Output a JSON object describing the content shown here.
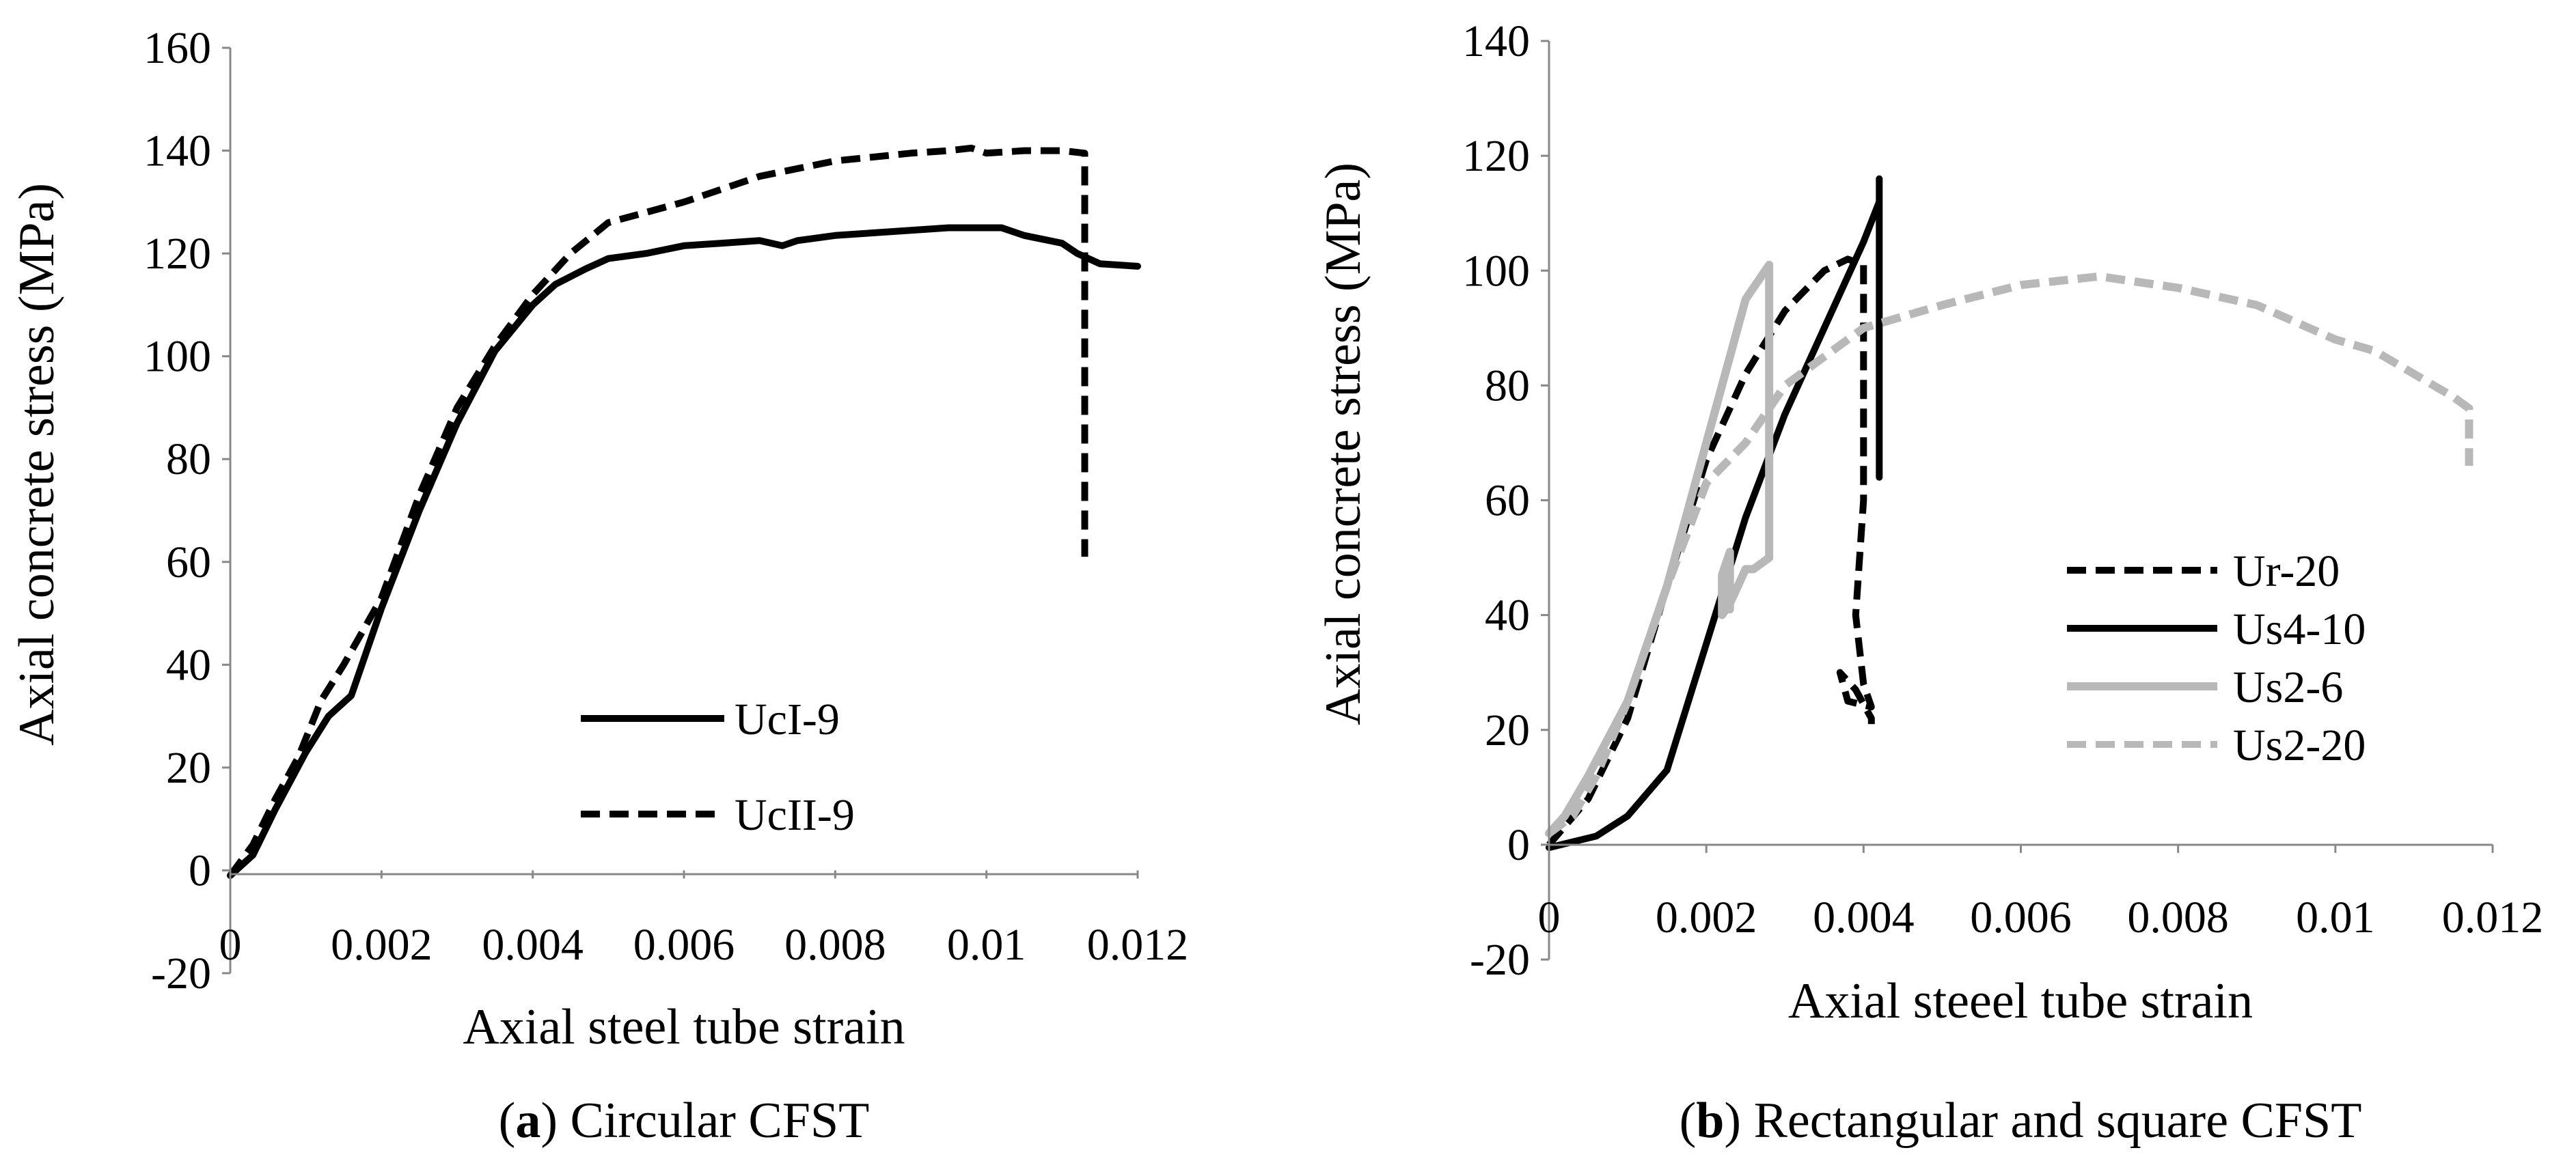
{
  "chart_data": [
    {
      "type": "line",
      "caption_bold": "a",
      "caption_text": " Circular CFST",
      "xlabel": "Axial steel tube strain",
      "ylabel": "Axial concrete stress (MPa)",
      "xlim": [
        0,
        0.012
      ],
      "ylim": [
        -20,
        160
      ],
      "x_ticks": [
        "0",
        "0.002",
        "0.004",
        "0.006",
        "0.008",
        "0.01",
        "0.012"
      ],
      "y_ticks": [
        "-20",
        "0",
        "20",
        "40",
        "60",
        "80",
        "100",
        "120",
        "140",
        "160"
      ],
      "legend": "center-right",
      "grid": false,
      "series": [
        {
          "name": "UcI-9",
          "color": "#000000",
          "dash": "solid",
          "x": [
            0,
            0.0003,
            0.0006,
            0.001,
            0.0013,
            0.0016,
            0.002,
            0.0025,
            0.003,
            0.0035,
            0.004,
            0.0043,
            0.0047,
            0.005,
            0.0055,
            0.006,
            0.0065,
            0.007,
            0.0073,
            0.0075,
            0.008,
            0.009,
            0.0095,
            0.01,
            0.0102,
            0.0105,
            0.011,
            0.0112,
            0.0115,
            0.012
          ],
          "y": [
            -1,
            3,
            12,
            23,
            30,
            34,
            51,
            70,
            87,
            101,
            110,
            114,
            117,
            119,
            120,
            121.5,
            122,
            122.5,
            121.5,
            122.5,
            123.5,
            124.5,
            125,
            125,
            125,
            123.5,
            122,
            120,
            118,
            117.5
          ]
        },
        {
          "name": "UcII-9",
          "color": "#000000",
          "dash": "dashed",
          "x": [
            0,
            0.0003,
            0.0006,
            0.0009,
            0.0012,
            0.0015,
            0.002,
            0.0025,
            0.003,
            0.0035,
            0.004,
            0.0045,
            0.005,
            0.0055,
            0.006,
            0.007,
            0.008,
            0.009,
            0.0095,
            0.0098,
            0.01,
            0.0105,
            0.011,
            0.0113,
            0.0113,
            0.0113
          ],
          "y": [
            -1,
            5,
            14,
            22,
            33,
            40,
            53,
            73,
            90,
            102,
            112,
            120,
            126,
            128,
            130,
            135,
            138,
            139.5,
            140,
            140.5,
            139.5,
            140,
            140,
            139.5,
            100,
            61
          ]
        }
      ]
    },
    {
      "type": "line",
      "caption_bold": "b",
      "caption_text": " Rectangular and square CFST",
      "xlabel": "Axial steeel tube strain",
      "ylabel": "Axial concrete stress (MPa)",
      "xlim": [
        0,
        0.012
      ],
      "ylim": [
        -20,
        140
      ],
      "x_ticks": [
        "0",
        "0.002",
        "0.004",
        "0.006",
        "0.008",
        "0.01",
        "0.012"
      ],
      "y_ticks": [
        "-20",
        "0",
        "20",
        "40",
        "60",
        "80",
        "100",
        "120",
        "140"
      ],
      "legend": "center-right",
      "grid": false,
      "series": [
        {
          "name": "Ur-20",
          "color": "#000000",
          "dash": "dashed",
          "x": [
            0,
            0.0005,
            0.001,
            0.0015,
            0.002,
            0.0025,
            0.003,
            0.0035,
            0.0038,
            0.004,
            0.004,
            0.004,
            0.0039,
            0.004,
            0.0041,
            0.0038,
            0.0037,
            0.0039,
            0.0041,
            0.0041
          ],
          "y": [
            0,
            8,
            22,
            45,
            67,
            82,
            93,
            100,
            102,
            101,
            85,
            60,
            40,
            28,
            24,
            25,
            30,
            27,
            22,
            21
          ]
        },
        {
          "name": "Us4-10",
          "color": "#000000",
          "dash": "solid",
          "x": [
            0,
            0.0003,
            0.0006,
            0.001,
            0.0015,
            0.002,
            0.0025,
            0.003,
            0.0035,
            0.004,
            0.0042,
            0.0042,
            0.0042,
            0.0042
          ],
          "y": [
            -0.5,
            0.5,
            1.5,
            5,
            13,
            35,
            57,
            75,
            90,
            105,
            112,
            116,
            90,
            64
          ]
        },
        {
          "name": "Us2-6",
          "color": "#b8b8b8",
          "dash": "solid",
          "x": [
            0,
            0.0002,
            0.0005,
            0.001,
            0.0015,
            0.002,
            0.0025,
            0.0028,
            0.0028,
            0.0028,
            0.0028,
            0.0026,
            0.0025,
            0.0023,
            0.0022,
            0.0022,
            0.0023,
            0.0023
          ],
          "y": [
            2,
            5,
            12,
            25,
            45,
            70,
            95,
            101,
            90,
            70,
            50,
            48,
            48,
            42,
            40,
            47,
            51,
            41
          ]
        },
        {
          "name": "Us2-20",
          "color": "#b8b8b8",
          "dash": "dashed",
          "x": [
            0,
            0.0003,
            0.0006,
            0.001,
            0.0015,
            0.002,
            0.0025,
            0.003,
            0.0035,
            0.004,
            0.005,
            0.006,
            0.007,
            0.008,
            0.009,
            0.01,
            0.0105,
            0.011,
            0.0115,
            0.0117,
            0.0117
          ],
          "y": [
            2,
            5,
            12,
            25,
            45,
            63,
            70,
            80,
            85,
            90,
            94,
            97.5,
            99,
            97,
            94,
            88,
            86,
            82,
            78,
            76,
            66
          ]
        }
      ]
    }
  ]
}
